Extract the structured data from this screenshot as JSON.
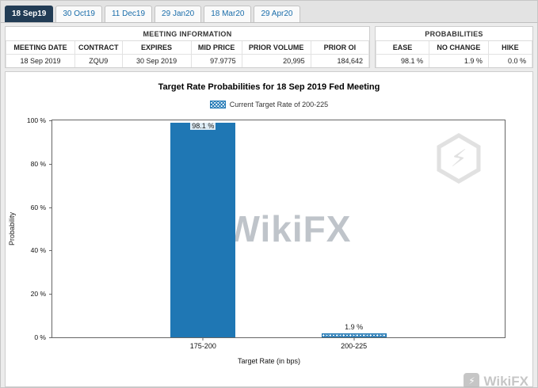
{
  "tabs": [
    {
      "label": "18 Sep19",
      "selected": true
    },
    {
      "label": "30 Oct19",
      "selected": false
    },
    {
      "label": "11 Dec19",
      "selected": false
    },
    {
      "label": "29 Jan20",
      "selected": false
    },
    {
      "label": "18 Mar20",
      "selected": false
    },
    {
      "label": "29 Apr20",
      "selected": false
    }
  ],
  "meeting_information": {
    "title": "MEETING INFORMATION",
    "columns": [
      "MEETING DATE",
      "CONTRACT",
      "EXPIRES",
      "MID PRICE",
      "PRIOR VOLUME",
      "PRIOR OI"
    ],
    "values": [
      "18 Sep 2019",
      "ZQU9",
      "30 Sep 2019",
      "97.9775",
      "20,995",
      "184,642"
    ]
  },
  "probabilities": {
    "title": "PROBABILITIES",
    "columns": [
      "EASE",
      "NO CHANGE",
      "HIKE"
    ],
    "values": [
      "98.1 %",
      "1.9 %",
      "0.0 %"
    ]
  },
  "chart_data": {
    "type": "bar",
    "title": "Target Rate Probabilities for 18 Sep 2019 Fed Meeting",
    "legend": "Current Target Rate of 200-225",
    "categories": [
      "175-200",
      "200-225"
    ],
    "values": [
      98.1,
      1.9
    ],
    "value_labels": [
      "98.1 %",
      "1.9 %"
    ],
    "xlabel": "Target Rate (in bps)",
    "ylabel": "Probability",
    "ylim": [
      0,
      100
    ],
    "yticks": [
      "100 %",
      "80 %",
      "60 %",
      "40 %",
      "20 %",
      "0 %"
    ],
    "bar_color": "#1f77b4",
    "current_target": "200-225",
    "grid": false,
    "legend_position": "top-center"
  },
  "watermark": {
    "center_text": "WikiFX",
    "bottom_right_text": "WikiFX"
  },
  "icons": {
    "bolt": "⚡"
  }
}
